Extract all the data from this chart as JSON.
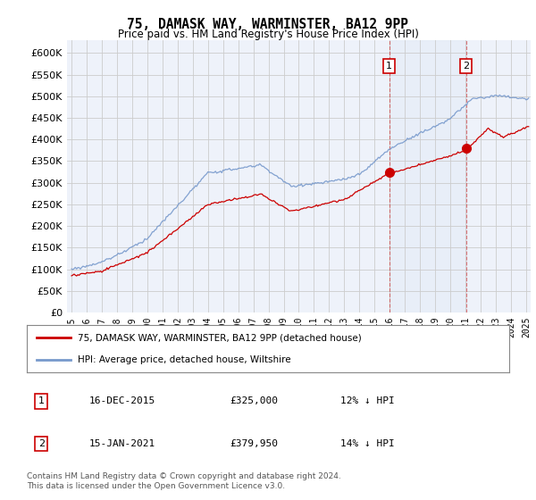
{
  "title": "75, DAMASK WAY, WARMINSTER, BA12 9PP",
  "subtitle": "Price paid vs. HM Land Registry's House Price Index (HPI)",
  "ylabel_ticks": [
    0,
    50000,
    100000,
    150000,
    200000,
    250000,
    300000,
    350000,
    400000,
    450000,
    500000,
    550000,
    600000
  ],
  "ylim": [
    0,
    630000
  ],
  "xlim_start": 1994.7,
  "xlim_end": 2025.3,
  "sale1_date": "16-DEC-2015",
  "sale1_price": 325000,
  "sale1_pct": "12% ↓ HPI",
  "sale1_x": 2015.958,
  "sale2_date": "15-JAN-2021",
  "sale2_price": 379950,
  "sale2_pct": "14% ↓ HPI",
  "sale2_x": 2021.042,
  "legend_label_red": "75, DAMASK WAY, WARMINSTER, BA12 9PP (detached house)",
  "legend_label_blue": "HPI: Average price, detached house, Wiltshire",
  "footer": "Contains HM Land Registry data © Crown copyright and database right 2024.\nThis data is licensed under the Open Government Licence v3.0.",
  "red_color": "#cc0000",
  "blue_color": "#7799cc",
  "shade_color": "#dde8f5",
  "background_color": "#ffffff",
  "plot_bg_color": "#eef2fa"
}
